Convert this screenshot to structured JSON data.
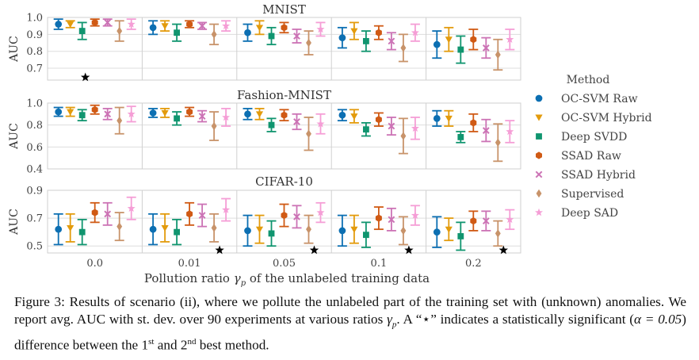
{
  "chart_data": {
    "type": "scatter",
    "variant": "errorbar-grouped",
    "x_categories": [
      "0.0",
      "0.01",
      "0.05",
      "0.1",
      "0.2"
    ],
    "xlabel_parts": {
      "prefix": "Pollution ratio ",
      "symbol": "γ",
      "subscript": "p",
      "suffix": " of the unlabeled training data"
    },
    "ylabel": "AUC",
    "grid": true,
    "legend": {
      "title": "Method",
      "placement": "right"
    },
    "methods": [
      {
        "name": "OC-SVM Raw",
        "color": "#0c6fb2",
        "marker": "circle"
      },
      {
        "name": "OC-SVM Hybrid",
        "color": "#e39b0c",
        "marker": "triangle-down"
      },
      {
        "name": "Deep SVDD",
        "color": "#10956f",
        "marker": "square"
      },
      {
        "name": "SSAD Raw",
        "color": "#d05a14",
        "marker": "hexagon"
      },
      {
        "name": "SSAD Hybrid",
        "color": "#cc73b5",
        "marker": "x"
      },
      {
        "name": "Supervised",
        "color": "#c8936a",
        "marker": "diamond"
      },
      {
        "name": "Deep SAD",
        "color": "#f59ed6",
        "marker": "star"
      }
    ],
    "significance_marker": "★",
    "panels": [
      {
        "title": "MNIST",
        "ylim": [
          0.63,
          1.0
        ],
        "yticks": [
          0.7,
          0.8,
          0.9,
          1.0
        ],
        "ytick_labels": [
          "0.7",
          "0.8",
          "0.9",
          "1.0"
        ],
        "significant": [
          0
        ],
        "series": [
          {
            "mean": [
              0.96,
              0.94,
              0.91,
              0.88,
              0.84
            ],
            "std": [
              0.03,
              0.04,
              0.05,
              0.06,
              0.08
            ]
          },
          {
            "mean": [
              0.96,
              0.95,
              0.94,
              0.92,
              0.87
            ],
            "std": [
              0.02,
              0.03,
              0.04,
              0.05,
              0.07
            ]
          },
          {
            "mean": [
              0.92,
              0.91,
              0.89,
              0.86,
              0.81
            ],
            "std": [
              0.05,
              0.05,
              0.05,
              0.06,
              0.08
            ]
          },
          {
            "mean": [
              0.97,
              0.96,
              0.94,
              0.91,
              0.87
            ],
            "std": [
              0.02,
              0.02,
              0.03,
              0.04,
              0.06
            ]
          },
          {
            "mean": [
              0.97,
              0.95,
              0.89,
              0.86,
              0.82
            ],
            "std": [
              0.02,
              0.02,
              0.04,
              0.05,
              0.06
            ]
          },
          {
            "mean": [
              0.92,
              0.9,
              0.85,
              0.82,
              0.78
            ],
            "std": [
              0.06,
              0.06,
              0.07,
              0.08,
              0.09
            ]
          },
          {
            "mean": [
              0.96,
              0.95,
              0.93,
              0.91,
              0.87
            ],
            "std": [
              0.03,
              0.03,
              0.04,
              0.05,
              0.06
            ]
          }
        ]
      },
      {
        "title": "Fashion-MNIST",
        "ylim": [
          0.4,
          1.0
        ],
        "yticks": [
          0.4,
          0.6,
          0.8,
          1.0
        ],
        "ytick_labels": [
          "0.4",
          "0.6",
          "0.8",
          "1.0"
        ],
        "significant": [],
        "series": [
          {
            "mean": [
              0.92,
              0.91,
              0.9,
              0.89,
              0.86
            ],
            "std": [
              0.04,
              0.04,
              0.05,
              0.05,
              0.07
            ]
          },
          {
            "mean": [
              0.92,
              0.91,
              0.9,
              0.88,
              0.86
            ],
            "std": [
              0.04,
              0.04,
              0.05,
              0.06,
              0.07
            ]
          },
          {
            "mean": [
              0.89,
              0.86,
              0.8,
              0.76,
              0.69
            ],
            "std": [
              0.05,
              0.06,
              0.06,
              0.06,
              0.05
            ]
          },
          {
            "mean": [
              0.94,
              0.92,
              0.89,
              0.85,
              0.82
            ],
            "std": [
              0.04,
              0.04,
              0.05,
              0.06,
              0.08
            ]
          },
          {
            "mean": [
              0.9,
              0.88,
              0.83,
              0.79,
              0.75
            ],
            "std": [
              0.05,
              0.05,
              0.07,
              0.08,
              0.1
            ]
          },
          {
            "mean": [
              0.84,
              0.79,
              0.72,
              0.7,
              0.64
            ],
            "std": [
              0.12,
              0.13,
              0.15,
              0.16,
              0.17
            ]
          },
          {
            "mean": [
              0.9,
              0.87,
              0.81,
              0.77,
              0.74
            ],
            "std": [
              0.07,
              0.08,
              0.09,
              0.1,
              0.1
            ]
          }
        ]
      },
      {
        "title": "CIFAR-10",
        "ylim": [
          0.45,
          0.9
        ],
        "yticks": [
          0.5,
          0.7,
          0.9
        ],
        "ytick_labels": [
          "0.5",
          "0.7",
          "0.9"
        ],
        "significant": [
          1,
          2,
          3,
          4
        ],
        "series": [
          {
            "mean": [
              0.62,
              0.62,
              0.61,
              0.61,
              0.6
            ],
            "std": [
              0.11,
              0.11,
              0.11,
              0.11,
              0.11
            ]
          },
          {
            "mean": [
              0.63,
              0.63,
              0.62,
              0.62,
              0.62
            ],
            "std": [
              0.1,
              0.1,
              0.1,
              0.1,
              0.08
            ]
          },
          {
            "mean": [
              0.6,
              0.6,
              0.59,
              0.58,
              0.57
            ],
            "std": [
              0.09,
              0.09,
              0.09,
              0.09,
              0.1
            ]
          },
          {
            "mean": [
              0.74,
              0.73,
              0.72,
              0.7,
              0.68
            ],
            "std": [
              0.07,
              0.08,
              0.08,
              0.08,
              0.07
            ]
          },
          {
            "mean": [
              0.73,
              0.72,
              0.71,
              0.69,
              0.68
            ],
            "std": [
              0.08,
              0.08,
              0.08,
              0.08,
              0.07
            ]
          },
          {
            "mean": [
              0.64,
              0.63,
              0.62,
              0.61,
              0.59
            ],
            "std": [
              0.1,
              0.1,
              0.1,
              0.1,
              0.09
            ]
          },
          {
            "mean": [
              0.77,
              0.76,
              0.74,
              0.72,
              0.69
            ],
            "std": [
              0.08,
              0.08,
              0.07,
              0.07,
              0.07
            ]
          }
        ]
      }
    ]
  },
  "caption": {
    "text_a": "Figure 3: Results of scenario (ii), where we pollute the unlabeled part of the training set with (unknown) anomalies. We report avg. AUC with st. dev. over 90 experiments at various ratios ",
    "gamma_symbol": "γ",
    "gamma_sub": "p",
    "text_b": ". A “",
    "star_symbol": "⋆",
    "text_c": "” indicates a statistically significant (",
    "alpha_expr": "α = 0.05",
    "text_d": ") difference between the 1",
    "first_sup": "st",
    "text_e": " and 2",
    "second_sup": "nd",
    "text_f": " best method."
  }
}
